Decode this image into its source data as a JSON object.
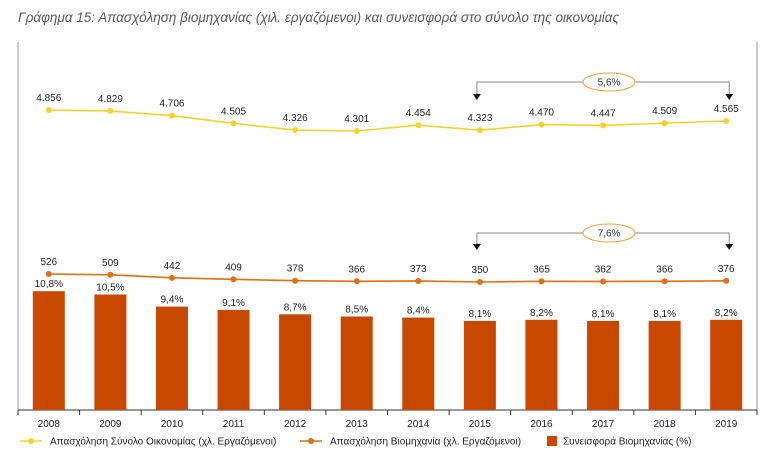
{
  "title": "Γράφημα 15: Απασχόληση βιομηχανίας (χιλ. εργαζόμενοι) και συνεισφορά στο σύνολο της οικονομίας",
  "colors": {
    "total_line": "#FAD02C",
    "industry_line": "#E07012",
    "bars": "#C84800",
    "annotation_ellipse": "#F4A23A"
  },
  "chart_data": {
    "type": "bar+line",
    "categories": [
      "2008",
      "2009",
      "2010",
      "2011",
      "2012",
      "2013",
      "2014",
      "2015",
      "2016",
      "2017",
      "2018",
      "2019"
    ],
    "series": [
      {
        "name": "Απασχόληση Σύνολο Οικονομίας (χλ. Εργαζόμενοι)",
        "kind": "line",
        "values": [
          4856,
          4829,
          4706,
          4505,
          4326,
          4301,
          4454,
          4323,
          4470,
          4447,
          4509,
          4565
        ],
        "labels": [
          "4.856",
          "4.829",
          "4.706",
          "4.505",
          "4.326",
          "4.301",
          "4.454",
          "4.323",
          "4.470",
          "4.447",
          "4.509",
          "4.565"
        ]
      },
      {
        "name": "Απασχόληση Βιομηχανία  (χλ. Εργαζόμενοι)",
        "kind": "line",
        "values": [
          526,
          509,
          442,
          409,
          378,
          366,
          373,
          350,
          365,
          362,
          366,
          376
        ],
        "labels": [
          "526",
          "509",
          "442",
          "409",
          "378",
          "366",
          "373",
          "350",
          "365",
          "362",
          "366",
          "376"
        ]
      },
      {
        "name": "Συνεισφορά Βιομηχανίας (%)",
        "kind": "bar",
        "values": [
          10.8,
          10.5,
          9.4,
          9.1,
          8.7,
          8.5,
          8.4,
          8.1,
          8.2,
          8.1,
          8.1,
          8.2
        ],
        "labels": [
          "10,8%",
          "10,5%",
          "9,4%",
          "9,1%",
          "8,7%",
          "8,5%",
          "8,4%",
          "8,1%",
          "8,2%",
          "8,1%",
          "8,1%",
          "8,2%"
        ]
      }
    ],
    "annotations": [
      {
        "from": "2015",
        "to": "2019",
        "series": "Απασχόληση Σύνολο Οικονομίας (χλ. Εργαζόμενοι)",
        "text": "5,6%"
      },
      {
        "from": "2015",
        "to": "2019",
        "series": "Απασχόληση Βιομηχανία  (χλ. Εργαζόμενοι)",
        "text": "7,6%"
      }
    ],
    "legend_position": "bottom",
    "grid": false
  }
}
